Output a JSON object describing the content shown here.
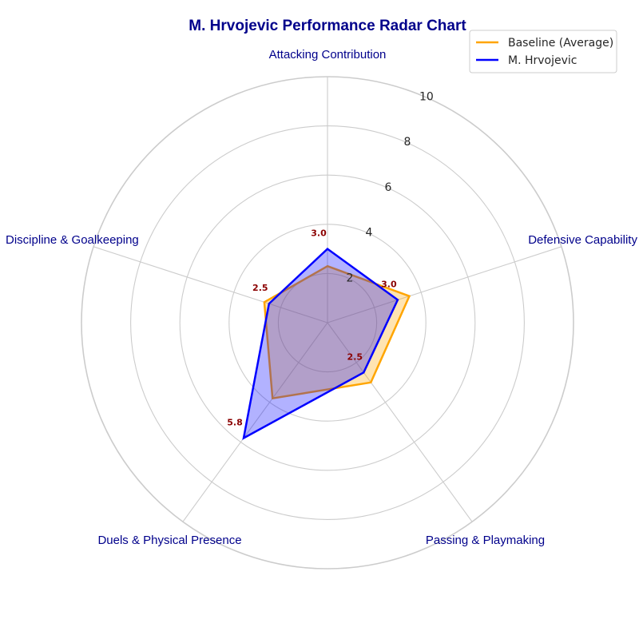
{
  "chart_data": {
    "type": "radar",
    "title": "M. Hrvojevic Performance Radar Chart",
    "categories": [
      "Attacking Contribution",
      "Defensive Capability",
      "Passing & Playmaking",
      "Duels & Physical Presence",
      "Discipline & Goalkeeping"
    ],
    "rlim": [
      0,
      10
    ],
    "rticks": [
      "2",
      "4",
      "6",
      "8",
      "10"
    ],
    "grid": true,
    "legend_position": "top-right",
    "series": [
      {
        "name": "Baseline (Average)",
        "values": [
          2.3,
          3.5,
          3.0,
          3.8,
          2.7
        ],
        "color": "#FFA500",
        "fill": "#FFA500"
      },
      {
        "name": "M. Hrvojevic",
        "values": [
          3.0,
          3.0,
          2.5,
          5.8,
          2.5
        ],
        "color": "#0000FF",
        "fill": "#0000FF"
      }
    ],
    "data_labels": [
      "3.0",
      "3.0",
      "2.5",
      "5.8",
      "2.5"
    ],
    "colors": {
      "title": "#00008B",
      "axis_label": "#00008B",
      "data_label": "#8B0000",
      "grid": "#cccccc"
    }
  }
}
